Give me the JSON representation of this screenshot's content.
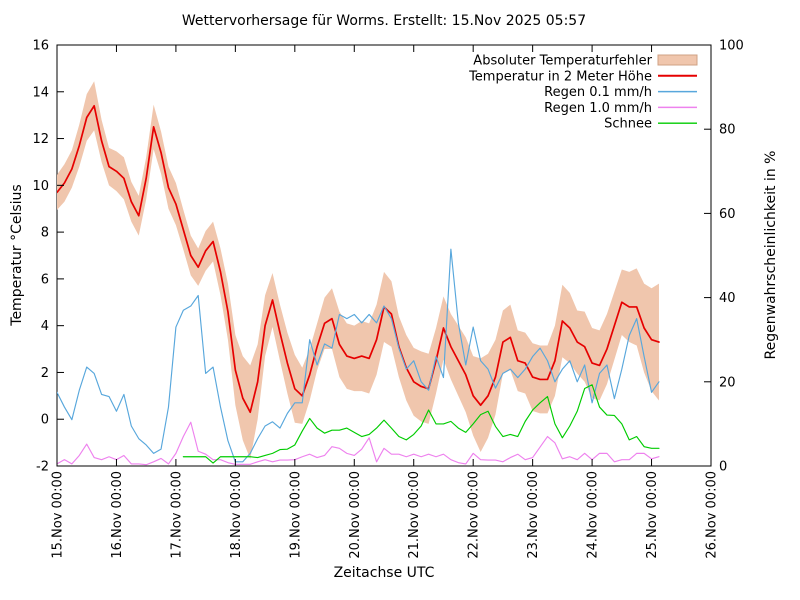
{
  "chart_data": {
    "type": "line",
    "title": "Wettervorhersage für Worms. Erstellt: 15.Nov 2025 05:57",
    "xlabel": "Zeitachse UTC",
    "ylabel_left": "Temperatur °Celsius",
    "ylabel_right": "Regenwahrscheinlichkeit in %",
    "y_left_range": [
      -2,
      16
    ],
    "y_left_ticks": [
      -2,
      0,
      2,
      4,
      6,
      8,
      10,
      12,
      14,
      16
    ],
    "y_right_range": [
      0,
      100
    ],
    "y_right_ticks": [
      0,
      20,
      40,
      60,
      80,
      100
    ],
    "x_range_days": [
      15,
      26
    ],
    "x_tick_days": [
      15,
      16,
      17,
      18,
      19,
      20,
      21,
      22,
      23,
      24,
      25,
      26
    ],
    "x_tick_labels": [
      "15.Nov 00:00",
      "16.Nov 00:00",
      "17.Nov 00:00",
      "18.Nov 00:00",
      "19.Nov 00:00",
      "20.Nov 00:00",
      "21.Nov 00:00",
      "22.Nov 00:00",
      "23.Nov 00:00",
      "24.Nov 00:00",
      "25.Nov 00:00",
      "26.Nov 00:00"
    ],
    "x_start_day": 15.0,
    "x_step_days": 0.125,
    "n_points": 82,
    "grid": false,
    "legend_position": "top-right-inside",
    "band": {
      "label": "Absoluter Temperaturfehler",
      "color": "#f0c6ad",
      "edge_color": "#cfa184",
      "axis": "left",
      "half_width": [
        0.75,
        0.8,
        0.8,
        0.9,
        1.0,
        1.05,
        0.9,
        0.8,
        0.85,
        0.9,
        0.85,
        0.85,
        0.9,
        0.95,
        0.9,
        0.9,
        0.9,
        0.85,
        0.85,
        0.8,
        0.85,
        0.85,
        1.0,
        1.2,
        1.5,
        1.8,
        2.0,
        1.6,
        1.3,
        1.15,
        1.2,
        1.3,
        1.45,
        1.2,
        1.1,
        1.0,
        1.1,
        1.3,
        1.4,
        1.4,
        1.4,
        1.5,
        1.5,
        1.5,
        1.5,
        1.4,
        1.3,
        1.4,
        1.45,
        1.5,
        1.5,
        1.4,
        1.35,
        1.4,
        1.5,
        1.6,
        1.7,
        2.0,
        1.8,
        1.6,
        1.35,
        1.4,
        1.3,
        1.3,
        1.45,
        1.45,
        1.45,
        1.5,
        1.55,
        1.5,
        1.35,
        1.5,
        1.5,
        1.5,
        1.5,
        1.45,
        1.4,
        1.5,
        1.65,
        1.9,
        2.2,
        2.5
      ]
    },
    "series": [
      {
        "name": "Temperatur in 2 Meter Höhe",
        "axis": "left",
        "unit": "°C",
        "color": "#e60000",
        "width": 1.7,
        "values": [
          9.7,
          10.1,
          10.7,
          11.7,
          12.9,
          13.4,
          11.9,
          10.8,
          10.6,
          10.3,
          9.3,
          8.7,
          10.3,
          12.5,
          11.4,
          9.9,
          9.2,
          8.1,
          7.0,
          6.5,
          7.2,
          7.6,
          6.3,
          4.6,
          2.1,
          0.9,
          0.3,
          1.6,
          4.0,
          5.1,
          3.7,
          2.4,
          1.3,
          1.0,
          1.9,
          3.1,
          4.1,
          4.3,
          3.2,
          2.7,
          2.6,
          2.7,
          2.6,
          3.4,
          4.8,
          4.5,
          3.1,
          2.2,
          1.6,
          1.4,
          1.3,
          2.5,
          3.9,
          3.1,
          2.5,
          1.9,
          1.0,
          0.6,
          1.0,
          1.8,
          3.3,
          3.5,
          2.5,
          2.4,
          1.8,
          1.7,
          1.7,
          2.5,
          4.2,
          3.9,
          3.3,
          3.1,
          2.4,
          2.3,
          3.0,
          4.0,
          5.0,
          4.8,
          4.8,
          3.9,
          3.4,
          3.3
        ]
      },
      {
        "name": "Regen 0.1 mm/h",
        "axis": "right",
        "unit": "%",
        "color": "#58a7dc",
        "width": 1.15,
        "values": [
          17.5,
          14,
          11,
          18,
          23.5,
          22,
          17,
          16.5,
          13,
          17,
          9.5,
          6.5,
          5,
          3,
          4,
          14,
          33,
          37,
          38,
          40.5,
          22,
          23.5,
          14,
          6,
          1,
          1,
          3,
          6.5,
          9.5,
          10.5,
          9,
          12.5,
          15,
          15,
          30,
          24,
          29,
          28,
          36,
          35,
          36,
          34,
          36,
          34,
          38,
          35,
          28,
          23,
          25,
          20,
          18,
          26,
          21,
          51.5,
          34,
          24,
          33,
          25,
          23,
          18.5,
          22,
          23,
          21,
          23,
          26,
          28,
          25,
          20,
          23,
          25,
          20,
          24,
          15,
          22,
          24,
          16,
          23,
          31,
          35,
          26,
          17.5,
          20
        ]
      },
      {
        "name": "Regen 1.0 mm/h",
        "axis": "right",
        "unit": "%",
        "color": "#ee82ee",
        "width": 1.15,
        "values": [
          0.5,
          1.5,
          0.5,
          2.5,
          5.2,
          2,
          1.5,
          2.2,
          1.5,
          2.5,
          0.5,
          0.5,
          0.3,
          1,
          1.8,
          0.5,
          3,
          7,
          10.4,
          3.5,
          2.8,
          1.5,
          1.5,
          0.8,
          0.4,
          0.4,
          0.4,
          1,
          1.5,
          1,
          1.4,
          1.4,
          1.5,
          2.2,
          2.8,
          2,
          2.5,
          4.6,
          4.2,
          3,
          2.5,
          4,
          6.7,
          1,
          4.2,
          2.8,
          2.8,
          2.2,
          2.8,
          2.2,
          2.8,
          2.2,
          2.8,
          1.5,
          0.8,
          0.5,
          3,
          1.5,
          1.4,
          1.4,
          1,
          2,
          2.8,
          1.5,
          2,
          4.5,
          7,
          5.5,
          1.7,
          2.2,
          1.5,
          3,
          1.5,
          3,
          3,
          1,
          1.5,
          1.5,
          3,
          3,
          1.7,
          2.2
        ]
      },
      {
        "name": "Schnee",
        "axis": "right",
        "unit": "%",
        "color": "#00cc00",
        "width": 1.15,
        "values": [
          null,
          null,
          null,
          null,
          null,
          null,
          null,
          null,
          null,
          null,
          null,
          null,
          null,
          null,
          null,
          null,
          null,
          2.2,
          2.2,
          2.2,
          2.2,
          0.7,
          2.2,
          2.2,
          2.2,
          2.2,
          2.2,
          2.0,
          2.5,
          3.0,
          3.9,
          4.0,
          5.0,
          8.3,
          11.3,
          9.0,
          7.8,
          8.5,
          8.5,
          9.0,
          8.0,
          7.0,
          7.5,
          9.0,
          10.9,
          9.0,
          7.0,
          6.2,
          7.5,
          9.5,
          13.3,
          10.0,
          10.0,
          10.6,
          9.0,
          8.0,
          10.0,
          12.2,
          13.0,
          9.4,
          7.0,
          7.5,
          7.0,
          10.6,
          13.3,
          15.0,
          16.5,
          10.0,
          6.7,
          9.5,
          13.0,
          18.4,
          19.3,
          14.0,
          12.1,
          12.0,
          10.0,
          6.2,
          7.0,
          4.6,
          4.2,
          4.2
        ]
      }
    ]
  }
}
